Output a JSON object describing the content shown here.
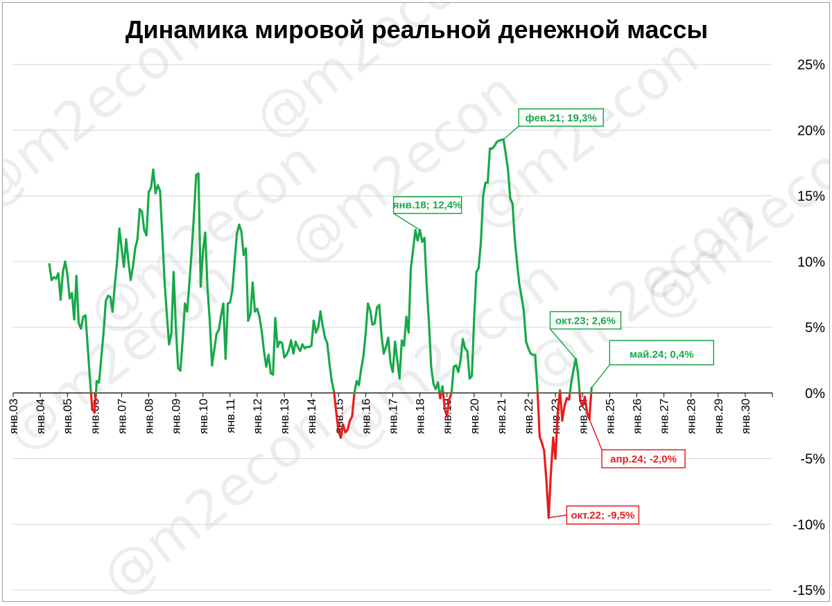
{
  "title": "Динамика мировой реальной денежной массы",
  "watermark": "@m2econ",
  "colors": {
    "positive": "#18a849",
    "negative": "#e81c1c",
    "grid": "#d4d4d4",
    "axis": "#000000"
  },
  "chart_data": {
    "type": "line",
    "title": "Динамика мировой реальной денежной массы",
    "xlabel": "",
    "ylabel": "",
    "ylim": [
      -15,
      25
    ],
    "xlim": [
      "2003-01",
      "2031-01"
    ],
    "y_axis_position": "right",
    "grid": true,
    "y_tick_labels": [
      "25%",
      "20%",
      "15%",
      "10%",
      "5%",
      "0%",
      "-5%",
      "-10%",
      "-15%"
    ],
    "x_tick_labels": [
      "янв.03",
      "янв.04",
      "янв.05",
      "янв.06",
      "янв.07",
      "янв.08",
      "янв.09",
      "янв.10",
      "янв.11",
      "янв.12",
      "янв.13",
      "янв.14",
      "янв.15",
      "янв.16",
      "янв.17",
      "янв.18",
      "янв.19",
      "янв.20",
      "янв.21",
      "янв.22",
      "янв.23",
      "янв.24",
      "янв.25",
      "янв.26",
      "янв.27",
      "янв.28",
      "янв.29",
      "янв.30"
    ],
    "series": [
      {
        "color_positive": "#18a849",
        "color_negative": "#e81c1c",
        "points": [
          [
            "2004-05",
            9.8
          ],
          [
            "2004-06",
            8.6
          ],
          [
            "2004-07",
            8.8
          ],
          [
            "2004-08",
            8.7
          ],
          [
            "2004-09",
            9.1
          ],
          [
            "2004-10",
            7.1
          ],
          [
            "2004-11",
            9.2
          ],
          [
            "2004-12",
            10.0
          ],
          [
            "2005-01",
            9.0
          ],
          [
            "2005-02",
            7.2
          ],
          [
            "2005-03",
            7.6
          ],
          [
            "2005-04",
            5.6
          ],
          [
            "2005-05",
            8.9
          ],
          [
            "2005-06",
            5.3
          ],
          [
            "2005-07",
            4.9
          ],
          [
            "2005-08",
            5.8
          ],
          [
            "2005-09",
            5.9
          ],
          [
            "2005-10",
            3.5
          ],
          [
            "2005-11",
            1.0
          ],
          [
            "2005-12",
            -1.2
          ],
          [
            "2006-01",
            -1.5
          ],
          [
            "2006-02",
            0.9
          ],
          [
            "2006-03",
            0.8
          ],
          [
            "2006-04",
            2.7
          ],
          [
            "2006-05",
            4.6
          ],
          [
            "2006-06",
            7.0
          ],
          [
            "2006-07",
            7.4
          ],
          [
            "2006-08",
            7.3
          ],
          [
            "2006-09",
            6.2
          ],
          [
            "2006-10",
            8.3
          ],
          [
            "2006-11",
            10.0
          ],
          [
            "2006-12",
            12.5
          ],
          [
            "2007-01",
            11.0
          ],
          [
            "2007-02",
            9.6
          ],
          [
            "2007-03",
            11.7
          ],
          [
            "2007-04",
            10.0
          ],
          [
            "2007-05",
            8.6
          ],
          [
            "2007-06",
            9.6
          ],
          [
            "2007-07",
            11.0
          ],
          [
            "2007-08",
            11.7
          ],
          [
            "2007-09",
            14.0
          ],
          [
            "2007-10",
            13.8
          ],
          [
            "2007-11",
            12.4
          ],
          [
            "2007-12",
            12.0
          ],
          [
            "2008-01",
            15.3
          ],
          [
            "2008-02",
            15.6
          ],
          [
            "2008-03",
            17.0
          ],
          [
            "2008-04",
            15.2
          ],
          [
            "2008-05",
            15.8
          ],
          [
            "2008-06",
            15.4
          ],
          [
            "2008-07",
            12.0
          ],
          [
            "2008-08",
            8.5
          ],
          [
            "2008-09",
            6.0
          ],
          [
            "2008-10",
            3.7
          ],
          [
            "2008-11",
            4.5
          ],
          [
            "2008-12",
            9.2
          ],
          [
            "2009-01",
            5.0
          ],
          [
            "2009-02",
            1.9
          ],
          [
            "2009-03",
            1.7
          ],
          [
            "2009-04",
            4.0
          ],
          [
            "2009-05",
            6.8
          ],
          [
            "2009-06",
            6.2
          ],
          [
            "2009-07",
            8.4
          ],
          [
            "2009-08",
            10.8
          ],
          [
            "2009-09",
            13.5
          ],
          [
            "2009-10",
            16.6
          ],
          [
            "2009-11",
            16.7
          ],
          [
            "2009-12",
            8.1
          ],
          [
            "2010-01",
            10.8
          ],
          [
            "2010-02",
            12.2
          ],
          [
            "2010-03",
            8.0
          ],
          [
            "2010-04",
            5.5
          ],
          [
            "2010-05",
            2.1
          ],
          [
            "2010-06",
            3.3
          ],
          [
            "2010-07",
            4.5
          ],
          [
            "2010-08",
            4.8
          ],
          [
            "2010-09",
            5.9
          ],
          [
            "2010-10",
            6.8
          ],
          [
            "2010-11",
            2.6
          ],
          [
            "2010-12",
            6.8
          ],
          [
            "2011-01",
            6.9
          ],
          [
            "2011-02",
            7.8
          ],
          [
            "2011-03",
            10.0
          ],
          [
            "2011-04",
            12.1
          ],
          [
            "2011-05",
            12.8
          ],
          [
            "2011-06",
            12.3
          ],
          [
            "2011-07",
            10.5
          ],
          [
            "2011-08",
            11.0
          ],
          [
            "2011-09",
            5.5
          ],
          [
            "2011-10",
            6.0
          ],
          [
            "2011-11",
            8.4
          ],
          [
            "2011-12",
            6.2
          ],
          [
            "2012-01",
            6.4
          ],
          [
            "2012-02",
            5.8
          ],
          [
            "2012-03",
            4.7
          ],
          [
            "2012-04",
            3.2
          ],
          [
            "2012-05",
            2.0
          ],
          [
            "2012-06",
            2.9
          ],
          [
            "2012-07",
            1.5
          ],
          [
            "2012-08",
            1.4
          ],
          [
            "2012-09",
            5.7
          ],
          [
            "2012-10",
            3.5
          ],
          [
            "2012-11",
            3.9
          ],
          [
            "2012-12",
            3.8
          ],
          [
            "2013-01",
            2.7
          ],
          [
            "2013-02",
            2.9
          ],
          [
            "2013-03",
            3.3
          ],
          [
            "2013-04",
            4.0
          ],
          [
            "2013-05",
            3.0
          ],
          [
            "2013-06",
            3.9
          ],
          [
            "2013-07",
            3.5
          ],
          [
            "2013-08",
            3.2
          ],
          [
            "2013-09",
            3.7
          ],
          [
            "2013-10",
            3.4
          ],
          [
            "2013-11",
            3.5
          ],
          [
            "2013-12",
            3.5
          ],
          [
            "2014-01",
            3.6
          ],
          [
            "2014-02",
            5.5
          ],
          [
            "2014-03",
            4.6
          ],
          [
            "2014-04",
            5.0
          ],
          [
            "2014-05",
            6.2
          ],
          [
            "2014-06",
            5.1
          ],
          [
            "2014-07",
            4.2
          ],
          [
            "2014-08",
            3.8
          ],
          [
            "2014-09",
            2.2
          ],
          [
            "2014-10",
            0.9
          ],
          [
            "2014-11",
            0.1
          ],
          [
            "2014-12",
            -1.5
          ],
          [
            "2015-01",
            -2.9
          ],
          [
            "2015-02",
            -3.4
          ],
          [
            "2015-03",
            -2.4
          ],
          [
            "2015-04",
            -3.0
          ],
          [
            "2015-05",
            -2.8
          ],
          [
            "2015-06",
            -2.1
          ],
          [
            "2015-07",
            -1.8
          ],
          [
            "2015-08",
            0.0
          ],
          [
            "2015-09",
            0.9
          ],
          [
            "2015-10",
            0.6
          ],
          [
            "2015-11",
            1.8
          ],
          [
            "2015-12",
            2.8
          ],
          [
            "2016-01",
            4.5
          ],
          [
            "2016-02",
            6.8
          ],
          [
            "2016-03",
            6.3
          ],
          [
            "2016-04",
            5.2
          ],
          [
            "2016-05",
            5.3
          ],
          [
            "2016-06",
            6.5
          ],
          [
            "2016-07",
            6.7
          ],
          [
            "2016-08",
            4.4
          ],
          [
            "2016-09",
            3.0
          ],
          [
            "2016-10",
            3.5
          ],
          [
            "2016-11",
            4.2
          ],
          [
            "2016-12",
            2.3
          ],
          [
            "2017-01",
            1.6
          ],
          [
            "2017-02",
            3.9
          ],
          [
            "2017-03",
            2.5
          ],
          [
            "2017-04",
            1.1
          ],
          [
            "2017-05",
            4.0
          ],
          [
            "2017-06",
            3.6
          ],
          [
            "2017-07",
            5.8
          ],
          [
            "2017-08",
            4.6
          ],
          [
            "2017-09",
            9.5
          ],
          [
            "2017-10",
            10.9
          ],
          [
            "2017-11",
            12.4
          ],
          [
            "2017-12",
            11.6
          ],
          [
            "2018-01",
            12.4
          ],
          [
            "2018-02",
            11.5
          ],
          [
            "2018-03",
            11.8
          ],
          [
            "2018-04",
            8.2
          ],
          [
            "2018-05",
            5.4
          ],
          [
            "2018-06",
            2.0
          ],
          [
            "2018-07",
            0.7
          ],
          [
            "2018-08",
            0.3
          ],
          [
            "2018-09",
            0.8
          ],
          [
            "2018-10",
            -0.4
          ],
          [
            "2018-11",
            0.5
          ],
          [
            "2018-12",
            -1.2
          ],
          [
            "2019-01",
            -1.8
          ],
          [
            "2019-02",
            -0.5
          ],
          [
            "2019-03",
            0.0
          ],
          [
            "2019-04",
            2.0
          ],
          [
            "2019-05",
            2.1
          ],
          [
            "2019-06",
            1.6
          ],
          [
            "2019-07",
            2.5
          ],
          [
            "2019-08",
            4.1
          ],
          [
            "2019-09",
            3.4
          ],
          [
            "2019-10",
            3.2
          ],
          [
            "2019-11",
            1.1
          ],
          [
            "2019-12",
            1.3
          ],
          [
            "2020-01",
            5.6
          ],
          [
            "2020-02",
            9.2
          ],
          [
            "2020-03",
            9.5
          ],
          [
            "2020-04",
            11.5
          ],
          [
            "2020-05",
            15.0
          ],
          [
            "2020-06",
            16.0
          ],
          [
            "2020-07",
            16.0
          ],
          [
            "2020-08",
            18.6
          ],
          [
            "2020-09",
            18.6
          ],
          [
            "2020-10",
            18.8
          ],
          [
            "2020-11",
            19.1
          ],
          [
            "2020-12",
            19.2
          ],
          [
            "2021-02",
            19.3
          ],
          [
            "2021-03",
            18.2
          ],
          [
            "2021-04",
            17.0
          ],
          [
            "2021-05",
            14.8
          ],
          [
            "2021-06",
            14.4
          ],
          [
            "2021-07",
            11.7
          ],
          [
            "2021-08",
            9.9
          ],
          [
            "2021-09",
            8.3
          ],
          [
            "2021-10",
            7.3
          ],
          [
            "2021-11",
            6.2
          ],
          [
            "2021-12",
            3.9
          ],
          [
            "2022-01",
            3.4
          ],
          [
            "2022-02",
            3.0
          ],
          [
            "2022-03",
            2.9
          ],
          [
            "2022-04",
            2.9
          ],
          [
            "2022-05",
            0.4
          ],
          [
            "2022-06",
            -3.3
          ],
          [
            "2022-07",
            -3.8
          ],
          [
            "2022-08",
            -4.4
          ],
          [
            "2022-09",
            -6.7
          ],
          [
            "2022-10",
            -9.5
          ],
          [
            "2022-11",
            -6.0
          ],
          [
            "2022-12",
            -3.4
          ],
          [
            "2023-01",
            -5.0
          ],
          [
            "2023-02",
            -1.5
          ],
          [
            "2023-03",
            0.2
          ],
          [
            "2023-04",
            -2.1
          ],
          [
            "2023-05",
            -1.0
          ],
          [
            "2023-06",
            -0.4
          ],
          [
            "2023-07",
            -0.5
          ],
          [
            "2023-08",
            0.8
          ],
          [
            "2023-09",
            1.8
          ],
          [
            "2023-10",
            2.6
          ],
          [
            "2023-11",
            1.5
          ],
          [
            "2023-12",
            -0.6
          ],
          [
            "2024-01",
            -1.0
          ],
          [
            "2024-02",
            -0.3
          ],
          [
            "2024-03",
            -1.5
          ],
          [
            "2024-04",
            -2.0
          ],
          [
            "2024-05",
            0.4
          ]
        ]
      }
    ],
    "annotations": [
      {
        "x": "2018-01",
        "y": 12.4,
        "label": "янв.18; 12,4%",
        "color": "#18a849"
      },
      {
        "x": "2021-02",
        "y": 19.3,
        "label": "фев.21; 19,3%",
        "color": "#18a849"
      },
      {
        "x": "2023-10",
        "y": 2.6,
        "label": "окт.23; 2,6%",
        "color": "#18a849"
      },
      {
        "x": "2024-05",
        "y": 0.4,
        "label": "май.24; 0,4%",
        "color": "#18a849"
      },
      {
        "x": "2024-04",
        "y": -2.0,
        "label": "апр.24; -2,0%",
        "color": "#e81c1c"
      },
      {
        "x": "2022-10",
        "y": -9.5,
        "label": "окт.22; -9,5%",
        "color": "#e81c1c"
      }
    ]
  }
}
